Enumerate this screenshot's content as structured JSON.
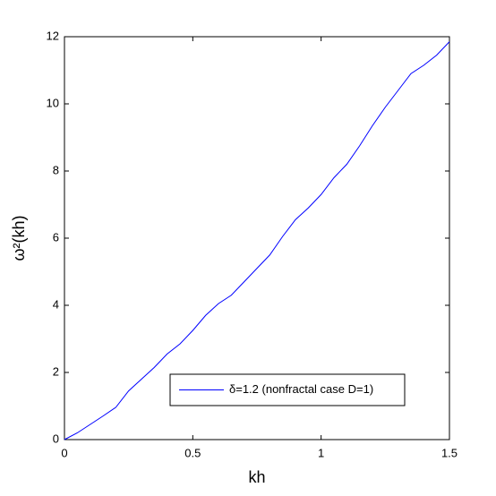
{
  "chart_data": {
    "type": "line",
    "xlabel": "kh",
    "ylabel": "ω²(kh)",
    "x": [
      0,
      0.05,
      0.1,
      0.15,
      0.2,
      0.25,
      0.3,
      0.35,
      0.4,
      0.45,
      0.5,
      0.55,
      0.6,
      0.65,
      0.7,
      0.75,
      0.8,
      0.85,
      0.9,
      0.95,
      1.0,
      1.05,
      1.1,
      1.15,
      1.2,
      1.25,
      1.3,
      1.35,
      1.4,
      1.45,
      1.5
    ],
    "series": [
      {
        "name": "δ=1.2 (nonfractal case D=1)",
        "color": "#0000ff",
        "values": [
          0,
          0.2,
          0.45,
          0.7,
          0.96,
          1.45,
          1.8,
          2.15,
          2.55,
          2.85,
          3.25,
          3.7,
          4.05,
          4.3,
          4.7,
          5.1,
          5.5,
          6.05,
          6.55,
          6.9,
          7.3,
          7.8,
          8.2,
          8.75,
          9.35,
          9.9,
          10.4,
          10.9,
          11.15,
          11.45,
          11.85
        ]
      }
    ],
    "xlim": [
      0,
      1.5
    ],
    "ylim": [
      0,
      12
    ],
    "xticks": [
      0,
      0.5,
      1,
      1.5
    ],
    "yticks": [
      0,
      2,
      4,
      6,
      8,
      10,
      12
    ],
    "grid": false,
    "legend": "lower right"
  }
}
